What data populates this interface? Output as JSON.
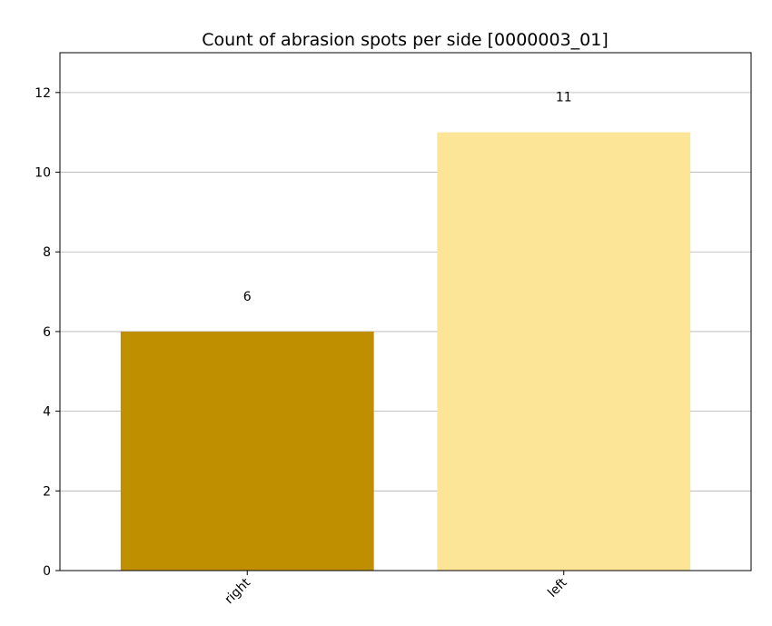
{
  "chart_data": {
    "type": "bar",
    "title": "Count of abrasion spots per side [0000003_01]",
    "xlabel": "",
    "ylabel": "",
    "categories": [
      "right",
      "left"
    ],
    "values": [
      6,
      11
    ],
    "data_labels": [
      "6",
      "11"
    ],
    "colors": [
      "#bf8f00",
      "#fde597"
    ],
    "ylim": [
      0,
      13
    ],
    "yticks": [
      0,
      2,
      4,
      6,
      8,
      10,
      12
    ],
    "ytick_labels": [
      "0",
      "2",
      "4",
      "6",
      "8",
      "10",
      "12"
    ],
    "grid": "horizontal",
    "legend": "none",
    "xtick_rotation": "45 degrees"
  }
}
